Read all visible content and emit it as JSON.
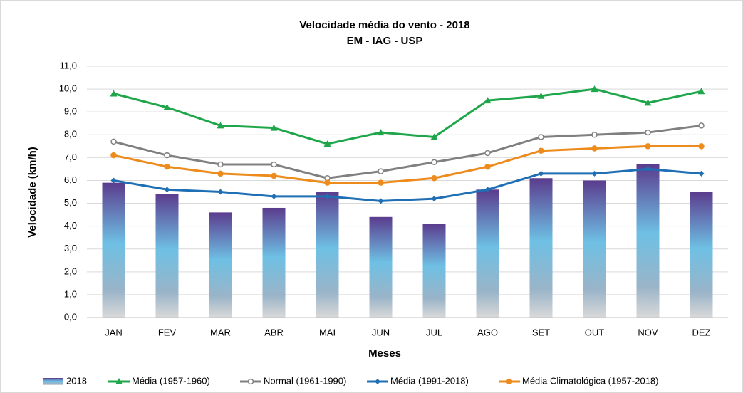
{
  "chart_data": {
    "type": "bar-line",
    "title": "Velocidade média do vento - 2018",
    "subtitle": "EM - IAG - USP",
    "x_label": "Meses",
    "y_label": "Velocidade (km/h)",
    "categories": [
      "JAN",
      "FEV",
      "MAR",
      "ABR",
      "MAI",
      "JUN",
      "JUL",
      "AGO",
      "SET",
      "OUT",
      "NOV",
      "DEZ"
    ],
    "series": [
      {
        "name": "2018",
        "type": "bar",
        "color": "#6fc0e0",
        "values": [
          5.9,
          5.4,
          4.6,
          4.8,
          5.5,
          4.4,
          4.1,
          5.6,
          6.1,
          6.0,
          6.7,
          5.5
        ]
      },
      {
        "name": "Média (1957-1960)",
        "type": "line",
        "marker": "triangle",
        "color": "#1fa64a",
        "values": [
          9.8,
          9.2,
          8.4,
          8.3,
          7.6,
          8.1,
          7.9,
          9.5,
          9.7,
          10.0,
          9.4,
          9.9
        ]
      },
      {
        "name": "Normal (1961-1990)",
        "type": "line",
        "marker": "circle",
        "color": "#808080",
        "values": [
          7.7,
          7.1,
          6.7,
          6.7,
          6.1,
          6.4,
          6.8,
          7.2,
          7.9,
          8.0,
          8.1,
          8.4
        ]
      },
      {
        "name": "Média (1991-2018)",
        "type": "line",
        "marker": "diamond",
        "color": "#1f6fb4",
        "values": [
          6.0,
          5.6,
          5.5,
          5.3,
          5.3,
          5.1,
          5.2,
          5.6,
          6.3,
          6.3,
          6.5,
          6.3
        ]
      },
      {
        "name": "Média Climatológica (1957-2018)",
        "type": "line",
        "marker": "circle",
        "color": "#ed8b1c",
        "values": [
          7.1,
          6.6,
          6.3,
          6.2,
          5.9,
          5.9,
          6.1,
          6.6,
          7.3,
          7.4,
          7.5,
          7.5
        ]
      }
    ],
    "ylim": [
      0,
      11
    ],
    "yticks": [
      {
        "value": 0,
        "label": "0,0"
      },
      {
        "value": 1,
        "label": "1,0"
      },
      {
        "value": 2,
        "label": "2,0"
      },
      {
        "value": 3,
        "label": "3,0"
      },
      {
        "value": 4,
        "label": "4,0"
      },
      {
        "value": 5,
        "label": "5,0"
      },
      {
        "value": 6,
        "label": "6,0"
      },
      {
        "value": 7,
        "label": "7,0"
      },
      {
        "value": 8,
        "label": "8,0"
      },
      {
        "value": 9,
        "label": "9,0"
      },
      {
        "value": 10,
        "label": "10,0"
      },
      {
        "value": 11,
        "label": "11,0"
      }
    ],
    "grid": true,
    "legend": "bottom"
  }
}
